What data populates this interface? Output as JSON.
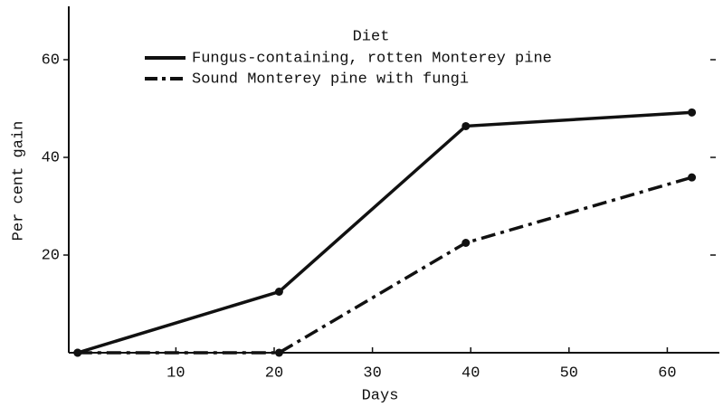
{
  "chart_data": {
    "type": "line",
    "xlabel": "Days",
    "ylabel": "Per cent gain",
    "legend_title": "Diet",
    "series": [
      {
        "name": "Fungus-containing, rotten Monterey pine",
        "color": "#111111",
        "linestyle": "solid",
        "x": [
          0,
          20.5,
          39.5,
          62.5
        ],
        "values": [
          0,
          12.5,
          46.4,
          49.2
        ]
      },
      {
        "name": "Sound Monterey pine with fungi",
        "color": "#111111",
        "linestyle": "dashdot",
        "x": [
          0,
          20.5,
          39.5,
          62.5
        ],
        "values": [
          0,
          0,
          22.5,
          35.9
        ]
      }
    ],
    "xlim": [
      -0.9,
      65.3
    ],
    "xticks": [
      10,
      20,
      30,
      40,
      50,
      60
    ],
    "ylim": [
      0,
      70
    ],
    "yticks": [
      20,
      40,
      60
    ],
    "grid": false,
    "legend": "upper left"
  }
}
